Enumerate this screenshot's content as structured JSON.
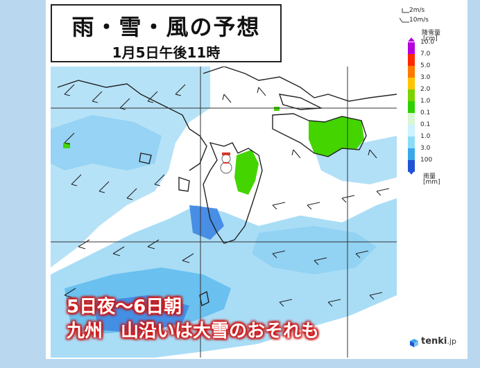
{
  "title": "雨・雪・風の予想",
  "subtitle": "1月5日午後11時",
  "headline": {
    "line1": "5日夜～6日朝",
    "line2": "九州　山沿いは大雪のおそれも"
  },
  "legend": {
    "wind_small": "2m/s",
    "wind_large": "10m/s",
    "snow_title": "降雪量",
    "snow_unit": "[cm]",
    "rain_title": "雨量",
    "rain_unit": "[mm]",
    "snow_levels": [
      "10.0",
      "7.0",
      "5.0",
      "3.0",
      "2.0",
      "1.0",
      "0.1"
    ],
    "rain_levels": [
      "0.1",
      "1.0",
      "3.0",
      "100"
    ],
    "snow_colors": [
      "#b400dc",
      "#ff2a00",
      "#ff7a00",
      "#ffc400",
      "#7ad400",
      "#2fd000",
      "#d9f7d2"
    ],
    "rain_colors": [
      "#ccf3ff",
      "#8ddcf6",
      "#3aa7e8",
      "#1f52d6"
    ]
  },
  "brand": {
    "name": "tenki",
    "suffix": ".jp"
  },
  "colors": {
    "rain_light": "#a9ddf6",
    "rain_mid": "#63bdee",
    "rain_strong": "#3d85e2",
    "snow": "#44d400",
    "background": "#b9d7ef"
  }
}
